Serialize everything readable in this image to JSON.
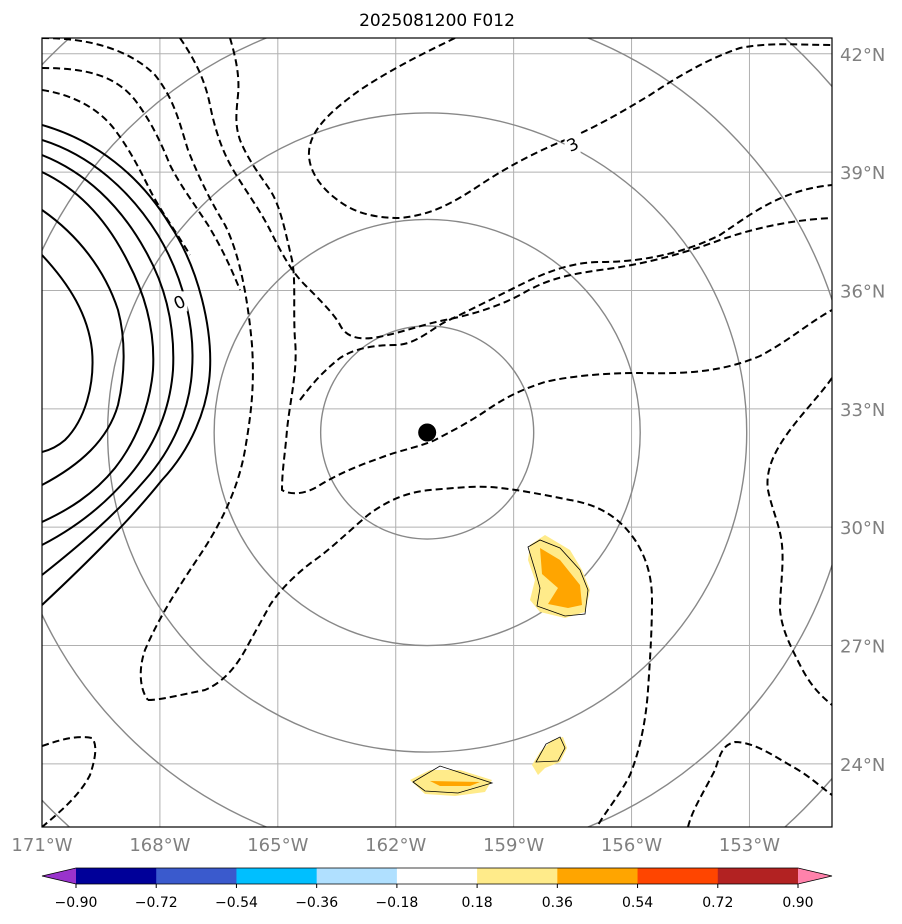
{
  "chart_data": {
    "type": "contour map",
    "title": "2025081200 F012",
    "lon_ticks": [
      "171°W",
      "168°W",
      "165°W",
      "162°W",
      "159°W",
      "156°W",
      "153°W"
    ],
    "lat_ticks": [
      "42°N",
      "39°N",
      "36°N",
      "33°N",
      "30°N",
      "27°N",
      "24°N"
    ],
    "lon_range": [
      -171,
      -150.9
    ],
    "lat_range": [
      22.4,
      42.4
    ],
    "grid": true,
    "center_marker": {
      "lon": -161.2,
      "lat": 32.4
    },
    "range_rings_deg": [
      2.7,
      5.4,
      8.1,
      10.8,
      13.5
    ],
    "contour_labels": [
      {
        "text": "3",
        "lon": -157.5,
        "lat": 39.7
      },
      {
        "text": "0",
        "lon": -167.5,
        "lat": 35.7
      }
    ],
    "filled_contours": {
      "levels": [
        -0.9,
        -0.72,
        -0.54,
        -0.36,
        -0.18,
        0.18,
        0.36,
        0.54,
        0.72,
        0.9
      ],
      "colors": [
        "#9933cc",
        "#000099",
        "#3a5acd",
        "#00bfff",
        "#b0e0ff",
        "#ffffff",
        "#ffeb8a",
        "#ffa500",
        "#ff4500",
        "#b22222",
        "#ff82ab"
      ],
      "colorbar_labels": [
        "−0.90",
        "−0.72",
        "−0.54",
        "−0.36",
        "−0.18",
        "0.18",
        "0.36",
        "0.54",
        "0.72",
        "0.90"
      ]
    }
  }
}
